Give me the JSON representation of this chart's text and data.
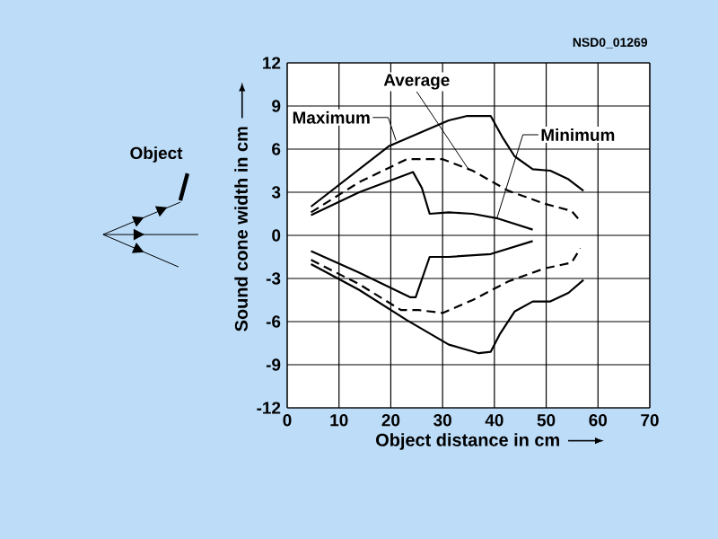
{
  "chart_data": {
    "type": "line",
    "xlabel": "Object distance in cm",
    "ylabel": "Sound cone width in cm",
    "xlim": [
      0,
      70
    ],
    "xticks": [
      0,
      10,
      20,
      30,
      40,
      50,
      60,
      70
    ],
    "ylim": [
      -12,
      12
    ],
    "yticks": [
      -12,
      -9,
      -6,
      -3,
      0,
      3,
      6,
      9,
      12
    ],
    "grid": true,
    "marker": "none",
    "series": [
      {
        "color": "#000000",
        "line_style": "solid",
        "x": [
          4.6,
          19.6,
          31.2,
          34.6,
          39.3,
          41.6,
          43.9,
          47.4,
          50.8,
          54.3,
          57.2
        ],
        "values": [
          2.0,
          6.2,
          8.0,
          8.3,
          8.3,
          6.8,
          5.5,
          4.6,
          4.5,
          3.9,
          3.1
        ]
      },
      {
        "color": "#000000",
        "line_style": "solid",
        "x": [
          4.6,
          13.9,
          23.1,
          31.2,
          37.0,
          39.3,
          41.0,
          43.9,
          47.4,
          50.8,
          54.3,
          57.2
        ],
        "values": [
          -2.0,
          -3.8,
          -5.9,
          -7.6,
          -8.2,
          -8.1,
          -6.9,
          -5.3,
          -4.6,
          -4.6,
          -4.0,
          -3.1
        ]
      },
      {
        "color": "#000000",
        "line_style": "dashed",
        "x": [
          4.6,
          13.9,
          23.1,
          30.0,
          35.8,
          42.7,
          49.7,
          54.9,
          56.8
        ],
        "values": [
          1.6,
          3.7,
          5.3,
          5.3,
          4.5,
          3.1,
          2.2,
          1.7,
          0.9
        ]
      },
      {
        "color": "#000000",
        "line_style": "dashed",
        "x": [
          4.6,
          13.9,
          22.0,
          25.4,
          30.0,
          35.8,
          42.7,
          49.7,
          54.9,
          56.6
        ],
        "values": [
          -1.7,
          -3.4,
          -5.2,
          -5.2,
          -5.4,
          -4.5,
          -3.2,
          -2.3,
          -1.9,
          -0.9
        ]
      },
      {
        "color": "#000000",
        "line_style": "solid",
        "x": [
          4.6,
          13.9,
          24.3,
          26.0,
          27.5,
          31.2,
          35.8,
          40.4,
          47.4
        ],
        "values": [
          1.4,
          3.0,
          4.4,
          3.3,
          1.5,
          1.6,
          1.5,
          1.2,
          0.4
        ]
      },
      {
        "color": "#000000",
        "line_style": "solid",
        "x": [
          4.6,
          13.9,
          23.7,
          24.8,
          27.5,
          31.2,
          39.3,
          47.4
        ],
        "values": [
          -1.1,
          -2.6,
          -4.3,
          -4.3,
          -1.5,
          -1.5,
          -1.3,
          -0.4
        ]
      }
    ],
    "annotations": [
      {
        "text": "Maximum",
        "x": 21,
        "y": 6.6
      },
      {
        "text": "Average",
        "x": 35,
        "y": 4.6
      },
      {
        "text": "Minimum",
        "x": 40.5,
        "y": 1.2
      },
      "NSD0_01269",
      "Object"
    ]
  }
}
